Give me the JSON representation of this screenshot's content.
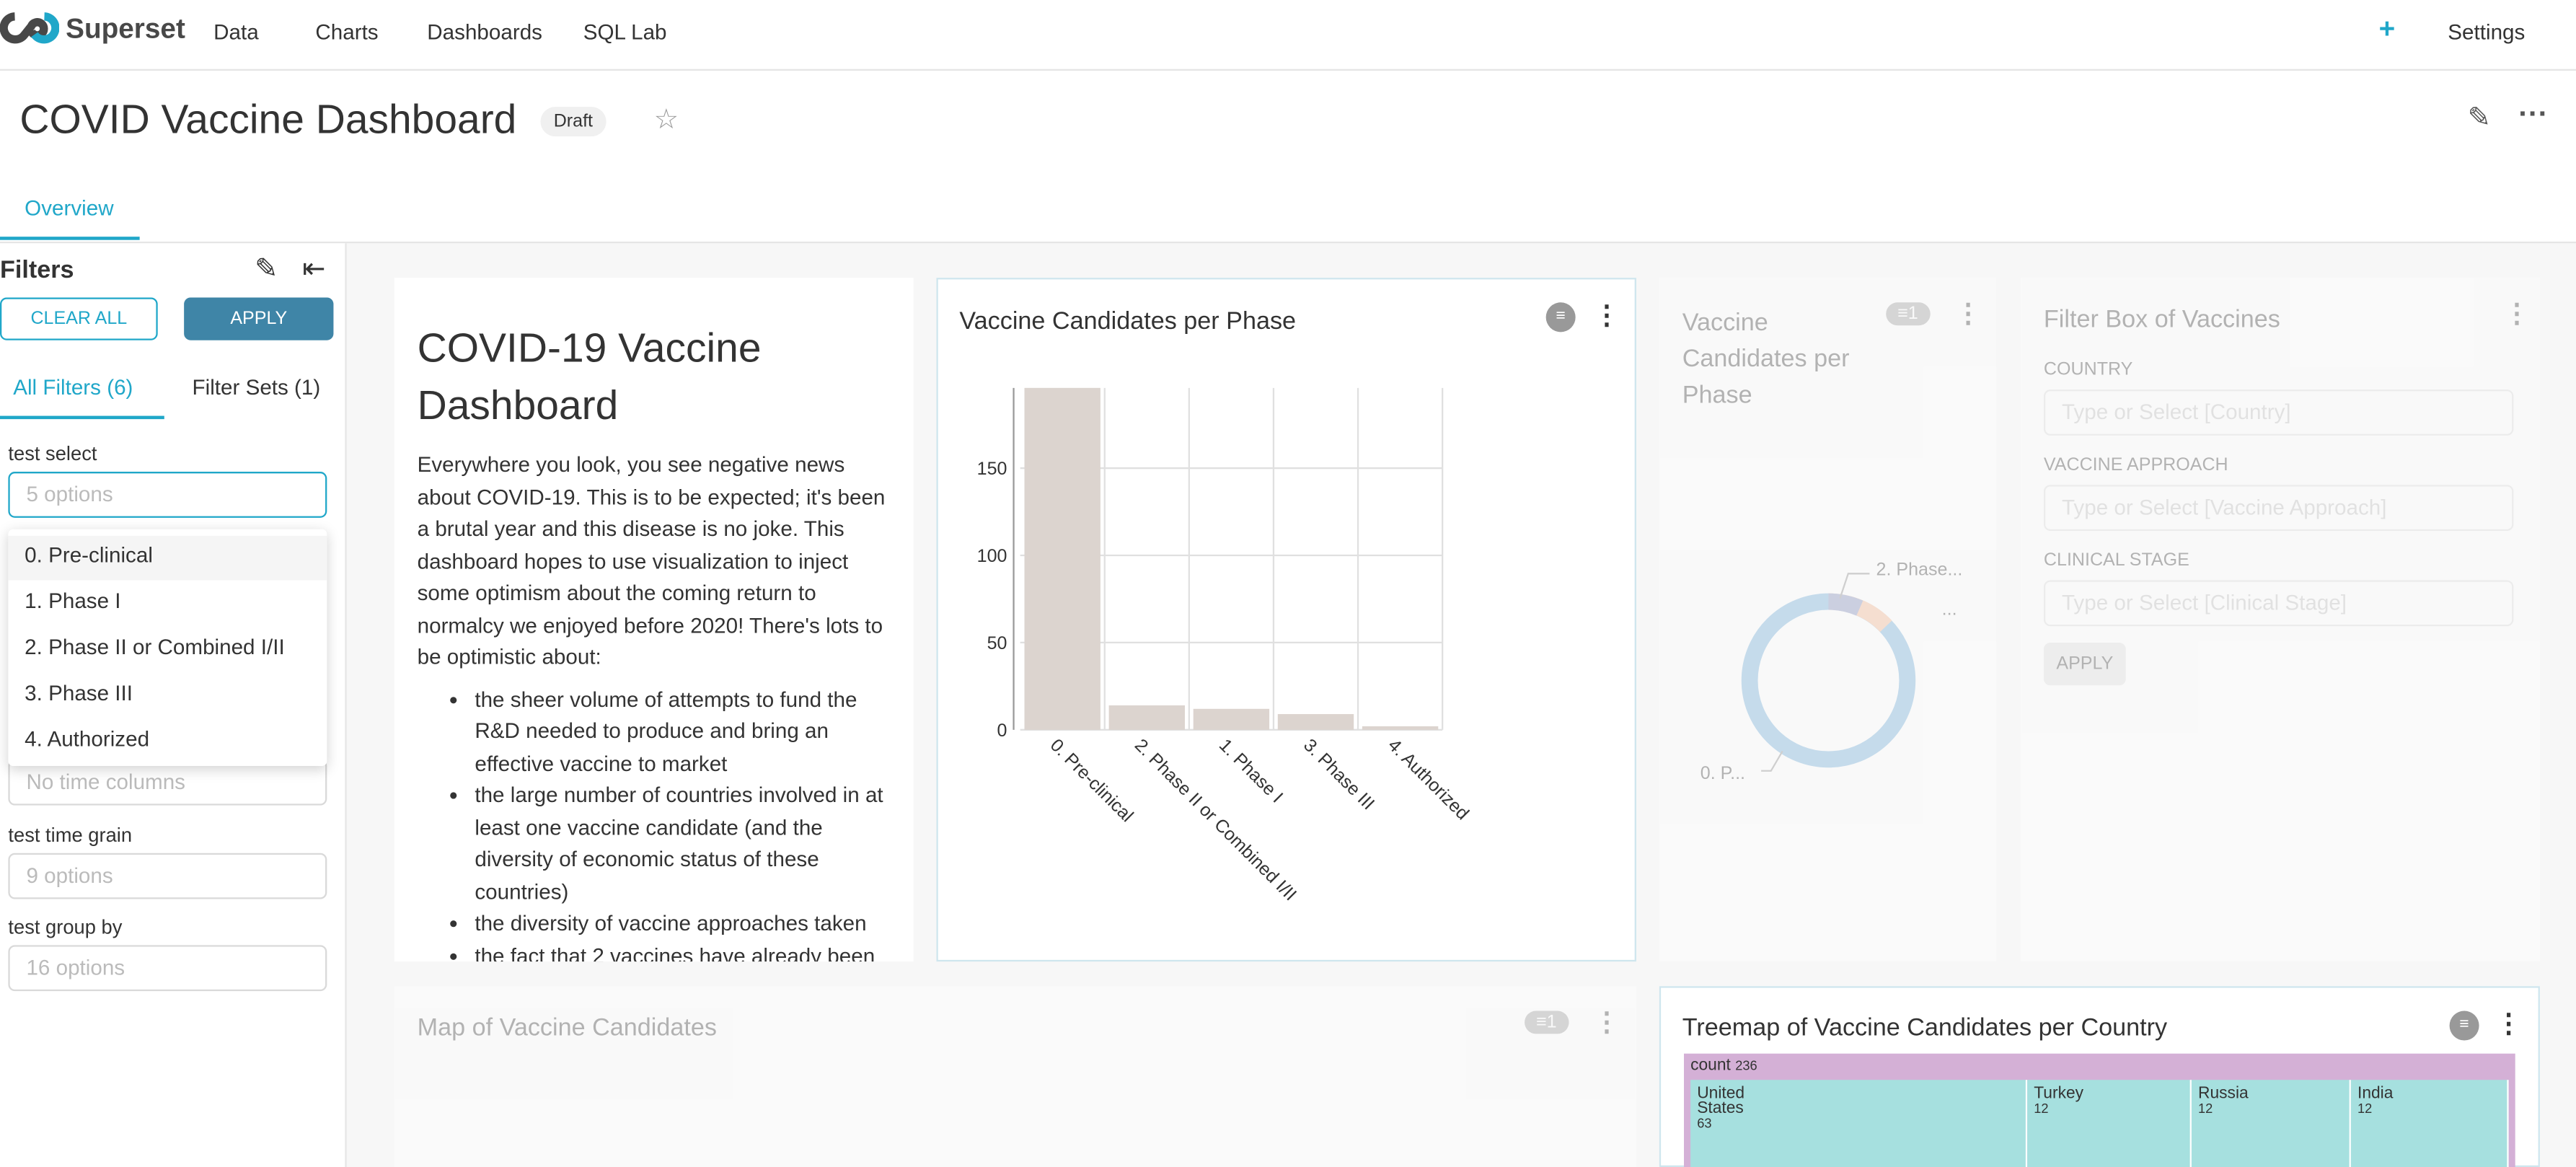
{
  "navbar": {
    "brand": "Superset",
    "menu": [
      "Data",
      "Charts",
      "Dashboards",
      "SQL Lab"
    ],
    "settings": "Settings"
  },
  "header": {
    "title": "COVID Vaccine Dashboard",
    "badge": "Draft"
  },
  "tabs": [
    "Overview"
  ],
  "filters": {
    "title": "Filters",
    "clear_all": "CLEAR ALL",
    "apply": "APPLY",
    "tabs": [
      "All Filters (6)",
      "Filter Sets (1)"
    ],
    "items": [
      {
        "label": "test select",
        "placeholder": "5 options"
      },
      {
        "placeholder": "No time columns"
      },
      {
        "label": "test time grain",
        "placeholder": "9 options"
      },
      {
        "label": "test group by",
        "placeholder": "16 options"
      }
    ],
    "dropdown_options": [
      "0. Pre-clinical",
      "1. Phase I",
      "2. Phase II or Combined I/II",
      "3. Phase III",
      "4. Authorized"
    ]
  },
  "markdown": {
    "title": "COVID-19 Vaccine Dashboard",
    "paragraph": "Everywhere you look, you see negative news about COVID-19. This is to be expected; it's been a brutal year and this disease is no joke. This dashboard hopes to use visualization to inject some optimism about the coming return to normalcy we enjoyed before 2020! There's lots to be optimistic about:",
    "bullets": [
      "the sheer volume of attempts to fund the R&D needed to produce and bring an effective vaccine to market",
      "the large number of countries involved in at least one vaccine candidate (and the diversity of economic status of these countries)",
      "the diversity of vaccine approaches taken",
      "the fact that 2 vaccines have already been"
    ]
  },
  "chart_data": {
    "type": "bar",
    "title": "Vaccine Candidates per Phase",
    "categories": [
      "0. Pre-clinical",
      "2. Phase II or Combined I/II",
      "1. Phase I",
      "3. Phase III",
      "4. Authorized"
    ],
    "values": [
      196,
      14,
      12,
      9,
      2
    ],
    "ylim": [
      0,
      196
    ],
    "yticks": [
      0,
      50,
      100,
      150
    ],
    "color": "#dcd4cf",
    "grid": true
  },
  "pie_chart": {
    "title": "Vaccine Candidates per Phase",
    "filter_count": 1,
    "labels": [
      "2. Phase...",
      "...",
      "0. P..."
    ]
  },
  "filter_box": {
    "title": "Filter Box of Vaccines",
    "fields": [
      {
        "label": "COUNTRY",
        "placeholder": "Type or Select [Country]"
      },
      {
        "label": "VACCINE APPROACH",
        "placeholder": "Type or Select [Vaccine Approach]"
      },
      {
        "label": "CLINICAL STAGE",
        "placeholder": "Type or Select [Clinical Stage]"
      }
    ],
    "apply": "APPLY"
  },
  "map": {
    "title": "Map of Vaccine Candidates",
    "filter_count": 1
  },
  "treemap": {
    "title": "Treemap of Vaccine Candidates per Country",
    "root": {
      "label": "count",
      "value": 236
    },
    "cells": [
      {
        "label": "United States",
        "value": 63
      },
      {
        "label": "Turkey",
        "value": 12
      },
      {
        "label": "Russia",
        "value": 12
      },
      {
        "label": "India",
        "value": 12
      }
    ]
  }
}
